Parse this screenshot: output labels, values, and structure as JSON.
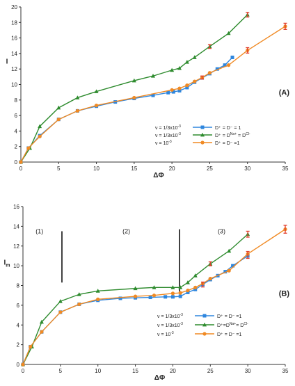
{
  "chart_data": [
    {
      "type": "line",
      "panel_label": "(A)",
      "xlabel": "ΔΦ",
      "ylabel": "I",
      "xlim": [
        0,
        35
      ],
      "ylim": [
        0,
        20
      ],
      "xticks": [
        "0",
        "5",
        "10",
        "15",
        "20",
        "25",
        "30",
        "35"
      ],
      "yticks": [
        "0",
        "2",
        "4",
        "6",
        "8",
        "10",
        "12",
        "14",
        "16",
        "18",
        "20"
      ],
      "grid": false,
      "legend_placement": "right-middle",
      "series": [
        {
          "key": "blue",
          "color": "#2e86de",
          "marker": "square",
          "legend_left": "ν = 1/3x10",
          "legend_left_sup": "-3",
          "legend_right_html": "D⁺ = D⁻ = 1",
          "x": [
            0,
            1,
            2.5,
            5,
            7.5,
            10,
            12.5,
            15,
            17.5,
            19.5,
            20.2,
            21,
            22,
            23,
            24,
            25,
            26,
            27,
            28
          ],
          "y": [
            0,
            1.8,
            3.4,
            5.5,
            6.6,
            7.2,
            7.75,
            8.2,
            8.6,
            8.95,
            9.05,
            9.2,
            9.6,
            10.3,
            10.85,
            11.4,
            12.0,
            12.5,
            13.5
          ]
        },
        {
          "key": "green",
          "color": "#2e8b2e",
          "marker": "triangle",
          "legend_left": "ν = 1/3x10",
          "legend_left_sup": "-3",
          "legend_right_html": "D⁺ = D",
          "legend_right_sub1": "Na+",
          "legend_right_mid": " = D",
          "legend_right_sub2": "Cl-",
          "x": [
            0,
            1.2,
            2.5,
            5,
            7.5,
            10,
            15,
            17.5,
            20,
            21,
            22,
            23,
            25,
            27.5,
            30
          ],
          "y": [
            0,
            1.8,
            4.6,
            7.0,
            8.3,
            9.1,
            10.5,
            11.1,
            11.85,
            12.1,
            12.9,
            13.5,
            14.9,
            16.6,
            19.0
          ]
        },
        {
          "key": "orange",
          "color": "#f08a24",
          "marker": "circle",
          "legend_left": "ν = 10",
          "legend_left_sup": "-3",
          "legend_right_html": "D⁺ = D⁻ =1",
          "x": [
            0,
            1,
            2.5,
            5,
            7.5,
            10,
            15,
            20,
            21,
            22,
            23,
            24,
            25,
            27.5,
            30,
            35
          ],
          "y": [
            0,
            1.8,
            3.3,
            5.5,
            6.6,
            7.3,
            8.3,
            9.3,
            9.5,
            9.9,
            10.4,
            10.9,
            11.5,
            12.5,
            14.4,
            17.5
          ]
        }
      ],
      "error_bars": [
        {
          "x": 24,
          "y": 10.9,
          "err": 0.2
        },
        {
          "x": 25,
          "y": 14.9,
          "err": 0.25
        },
        {
          "x": 30,
          "y": 19.0,
          "err": 0.3
        },
        {
          "x": 30,
          "y": 14.4,
          "err": 0.35
        },
        {
          "x": 35,
          "y": 17.5,
          "err": 0.4
        }
      ]
    },
    {
      "type": "line",
      "panel_label": "(B)",
      "xlabel": "ΔΦ",
      "ylabel": "I",
      "ylabel_sub": "m",
      "xlim": [
        0,
        35
      ],
      "ylim": [
        0,
        16
      ],
      "xticks": [
        "0",
        "5",
        "10",
        "15",
        "20",
        "25",
        "30",
        "35"
      ],
      "yticks": [
        "0",
        "2",
        "4",
        "6",
        "8",
        "10",
        "12",
        "14",
        "16"
      ],
      "grid": false,
      "legend_placement": "right-bottom",
      "regions": [
        {
          "label": "(1)",
          "x": 2.2,
          "y": 13.3
        },
        {
          "label": "(2)",
          "x": 13.8,
          "y": 13.3
        },
        {
          "label": "(3)",
          "x": 26.5,
          "y": 13.3
        }
      ],
      "region_dividers": [
        {
          "x": 5.2,
          "y1": 8.3,
          "y2": 13.5
        },
        {
          "x": 20.9,
          "y1": 7.1,
          "y2": 13.7
        }
      ],
      "series": [
        {
          "key": "blue",
          "color": "#2e86de",
          "marker": "square",
          "legend_left": "ν = 1/3x10",
          "legend_left_sup": "-3",
          "legend_right_html": "D⁺ = D⁻ =1",
          "x": [
            0,
            1,
            2.5,
            5,
            7.5,
            10,
            13,
            15,
            17,
            19,
            20,
            21,
            22,
            23,
            24,
            25,
            26,
            27,
            28,
            30
          ],
          "y": [
            0,
            1.8,
            3.3,
            5.3,
            6.1,
            6.5,
            6.7,
            6.75,
            6.8,
            6.85,
            6.85,
            6.9,
            7.3,
            7.6,
            8.1,
            8.6,
            9.0,
            9.4,
            10.0,
            11.0
          ]
        },
        {
          "key": "green",
          "color": "#2e8b2e",
          "marker": "triangle",
          "legend_left": "ν = 1/3x10",
          "legend_left_sup": "-3",
          "legend_right_html": "D⁺=D",
          "legend_right_sub1": "Na+",
          "legend_right_mid": "= D",
          "legend_right_sub2": "Cl-",
          "x": [
            0,
            1.2,
            2.5,
            5,
            7.5,
            10,
            15,
            17.5,
            20,
            21,
            22,
            23,
            25,
            27.5,
            30
          ],
          "y": [
            0,
            1.8,
            4.3,
            6.4,
            7.1,
            7.45,
            7.7,
            7.8,
            7.8,
            7.8,
            8.3,
            9.0,
            10.2,
            11.5,
            13.2
          ]
        },
        {
          "key": "orange",
          "color": "#f08a24",
          "marker": "circle",
          "legend_left": "ν = 10",
          "legend_left_sup": "-3",
          "legend_right_html": "D⁺ = D⁻ =1",
          "x": [
            0,
            1,
            2.5,
            5,
            7.5,
            10,
            15,
            17.5,
            20,
            21,
            22,
            23,
            24,
            25,
            27.5,
            30,
            35
          ],
          "y": [
            0,
            1.8,
            3.3,
            5.3,
            6.1,
            6.6,
            6.9,
            7.0,
            7.2,
            7.25,
            7.5,
            7.8,
            8.2,
            8.7,
            9.5,
            11.2,
            13.7
          ]
        }
      ],
      "error_bars": [
        {
          "x": 24,
          "y": 8.1,
          "err": 0.25
        },
        {
          "x": 25,
          "y": 10.2,
          "err": 0.2
        },
        {
          "x": 30,
          "y": 13.2,
          "err": 0.3
        },
        {
          "x": 30,
          "y": 11.1,
          "err": 0.35
        },
        {
          "x": 35,
          "y": 13.7,
          "err": 0.4
        }
      ]
    }
  ]
}
